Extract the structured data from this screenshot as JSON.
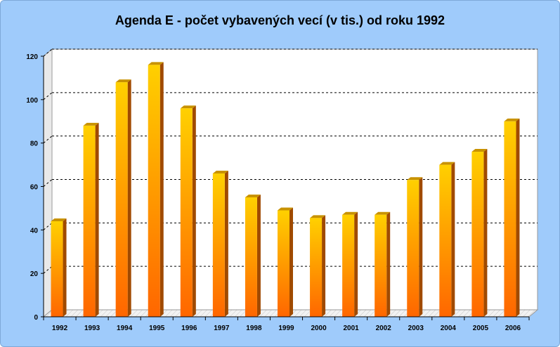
{
  "chart_data": {
    "type": "bar",
    "title": "Agenda E - počet vybavených vecí (v tis.) od roku 1992",
    "xlabel": "",
    "ylabel": "",
    "categories": [
      "1992",
      "1993",
      "1994",
      "1995",
      "1996",
      "1997",
      "1998",
      "1999",
      "2000",
      "2001",
      "2002",
      "2003",
      "2004",
      "2005",
      "2006"
    ],
    "values": [
      44,
      88,
      108,
      116,
      96,
      66,
      55,
      49,
      45.5,
      47,
      47,
      63,
      70,
      76,
      90
    ],
    "ylim": [
      0,
      120
    ],
    "yticks": [
      "0",
      "20",
      "40",
      "60",
      "80",
      "100",
      "120"
    ],
    "grid": true,
    "legend": "none",
    "colors": {
      "bar_top": "#ffd000",
      "bar_bottom": "#ff6600",
      "bar_side": "#a04a00",
      "bar_cap": "#c89200",
      "background": "#9fcbfb",
      "plot": "#ffffff"
    }
  }
}
